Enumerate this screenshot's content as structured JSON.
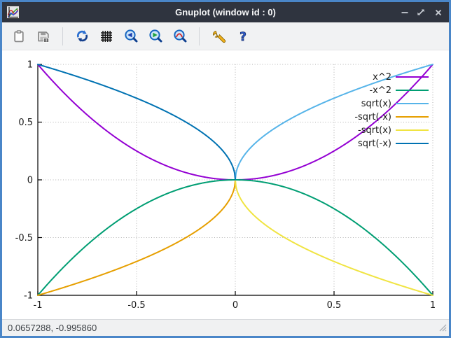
{
  "window": {
    "title": "Gnuplot (window id : 0)",
    "app_icon": "gnuplot-logo-icon",
    "controls": [
      {
        "name": "minimize-button",
        "icon": "minimize-icon"
      },
      {
        "name": "restore-button",
        "icon": "restore-icon"
      },
      {
        "name": "close-button",
        "icon": "close-icon"
      }
    ]
  },
  "toolbar": {
    "items": [
      "clipboard-icon",
      "save-image-icon",
      "refresh-icon",
      "grid-icon",
      "zoom-previous-icon",
      "zoom-next-icon",
      "autoscale-icon",
      "settings-wrench-icon",
      "help-icon"
    ]
  },
  "statusbar": {
    "coordinates": "0.0657288, -0.995860"
  },
  "colors": {
    "frame": "#4a86c8",
    "titlebar": "#2f343f",
    "toolbar_bg": "#f1f2f3",
    "grid": "#b2b2b2",
    "axis": "#000000",
    "text": "#1a1a1a"
  },
  "chart_data": {
    "type": "line",
    "title": "",
    "xlabel": "",
    "ylabel": "",
    "xlim": [
      -1,
      1
    ],
    "ylim": [
      -1,
      1
    ],
    "xticks": [
      -1,
      -0.5,
      0,
      0.5,
      1
    ],
    "yticks": [
      -1,
      -0.5,
      0,
      0.5,
      1
    ],
    "xtick_labels": [
      "-1",
      "-0.5",
      "0",
      "0.5",
      "1"
    ],
    "ytick_labels": [
      "-1",
      "-0.5",
      "0",
      "0.5",
      "1"
    ],
    "grid": true,
    "border": "left-bottom-solid",
    "legend_position": "top-right-inside",
    "series": [
      {
        "name": "x^2",
        "color": "#9400d3",
        "expr": "x*x",
        "domain": [
          -1,
          1
        ],
        "points_hint": [
          [
            -1,
            1
          ],
          [
            -0.5,
            0.25
          ],
          [
            0,
            0
          ],
          [
            0.5,
            0.25
          ],
          [
            1,
            1
          ]
        ]
      },
      {
        "name": "-x^2",
        "color": "#009e73",
        "expr": "-(x*x)",
        "domain": [
          -1,
          1
        ],
        "points_hint": [
          [
            -1,
            -1
          ],
          [
            -0.5,
            -0.25
          ],
          [
            0,
            0
          ],
          [
            0.5,
            -0.25
          ],
          [
            1,
            -1
          ]
        ]
      },
      {
        "name": "sqrt(x)",
        "color": "#56b4e9",
        "expr": "Math.sqrt(x)",
        "domain": [
          0,
          1
        ],
        "points_hint": [
          [
            0,
            0
          ],
          [
            0.25,
            0.5
          ],
          [
            1,
            1
          ]
        ]
      },
      {
        "name": "-sqrt(-x)",
        "color": "#e69f00",
        "expr": "-Math.sqrt(-x)",
        "domain": [
          -1,
          0
        ],
        "points_hint": [
          [
            -1,
            -1
          ],
          [
            -0.25,
            -0.5
          ],
          [
            0,
            0
          ]
        ]
      },
      {
        "name": "-sqrt(x)",
        "color": "#f0e442",
        "expr": "-Math.sqrt(x)",
        "domain": [
          0,
          1
        ],
        "points_hint": [
          [
            0,
            0
          ],
          [
            0.25,
            -0.5
          ],
          [
            1,
            -1
          ]
        ]
      },
      {
        "name": "sqrt(-x)",
        "color": "#0072b2",
        "expr": "Math.sqrt(-x)",
        "domain": [
          -1,
          0
        ],
        "points_hint": [
          [
            -1,
            1
          ],
          [
            -0.25,
            0.5
          ],
          [
            0,
            0
          ]
        ]
      }
    ]
  }
}
